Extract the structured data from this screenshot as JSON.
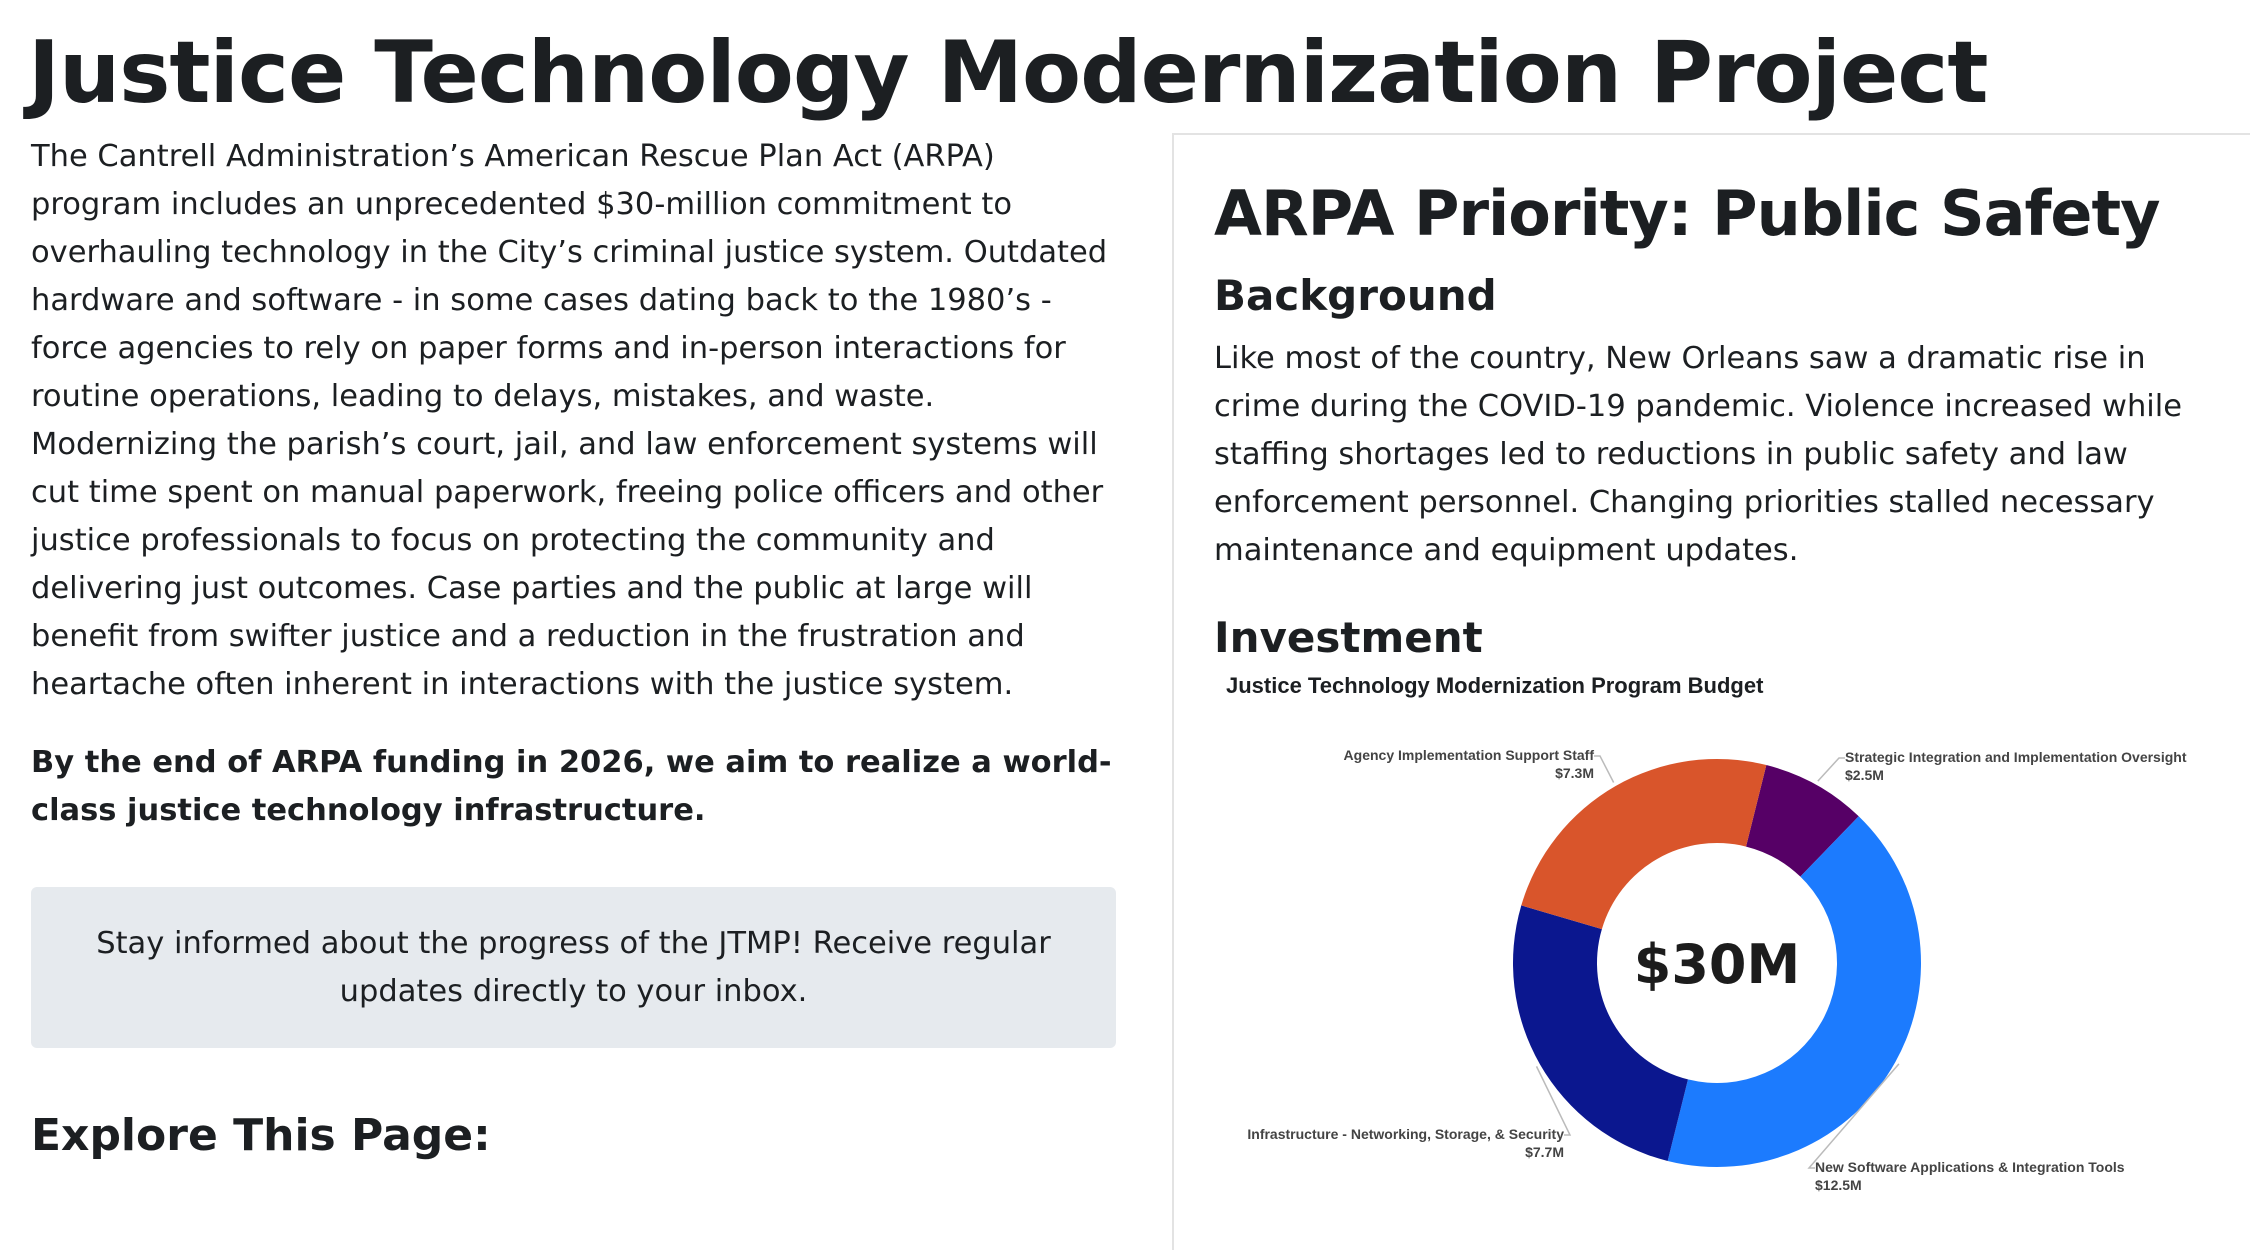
{
  "page": {
    "title": "Justice Technology Modernization Project",
    "intro": "The Cantrell Administration’s American Rescue Plan Act (ARPA) program includes an unprecedented $30-million commitment to overhauling technology in the City’s criminal justice system. Outdated hardware and software - in some cases dating back to the 1980’s - force agencies to rely on paper forms and in-person interactions for routine operations, leading to delays, mistakes, and waste.  Modernizing the parish’s court, jail, and law enforcement systems will cut time spent on manual paperwork, freeing police officers and other justice professionals to focus on protecting the community and delivering just outcomes. Case parties and the public at large will benefit from swifter justice and a reduction in the frustration and heartache often inherent in interactions with the justice system.",
    "goal": "By the end of ARPA funding in 2026, we aim to realize a world-class justice technology infrastructure.",
    "signup_text": "Stay informed about the progress of the JTMP! Receive regular updates directly to your inbox.",
    "explore_heading": "Explore This Page:"
  },
  "panel": {
    "heading": "ARPA Priority: Public Safety",
    "background_heading": "Background",
    "background_text": "Like most of the country, New Orleans saw a dramatic rise in crime during the COVID-19 pandemic. Violence increased while staffing shortages led to reductions in public safety and law enforcement personnel. Changing priorities stalled necessary maintenance and equipment updates.",
    "investment_heading": "Investment"
  },
  "chart_data": {
    "type": "pie",
    "variant": "donut",
    "title": "Justice Technology Modernization Program Budget",
    "center_label": "$30M",
    "slices": [
      {
        "name": "Strategic Integration and Implementation Oversight",
        "value": 2.5,
        "label": "$2.5M",
        "color": "#560066"
      },
      {
        "name": "New Software Applications & Integration Tools",
        "value": 12.5,
        "label": "$12.5M",
        "color": "#1C7BFE"
      },
      {
        "name": "Infrastructure - Networking, Storage, & Security",
        "value": 7.7,
        "label": "$7.7M",
        "color": "#0B178F"
      },
      {
        "name": "Agency Implementation Support Staff",
        "value": 7.3,
        "label": "$7.3M",
        "color": "#D9552B"
      }
    ]
  }
}
